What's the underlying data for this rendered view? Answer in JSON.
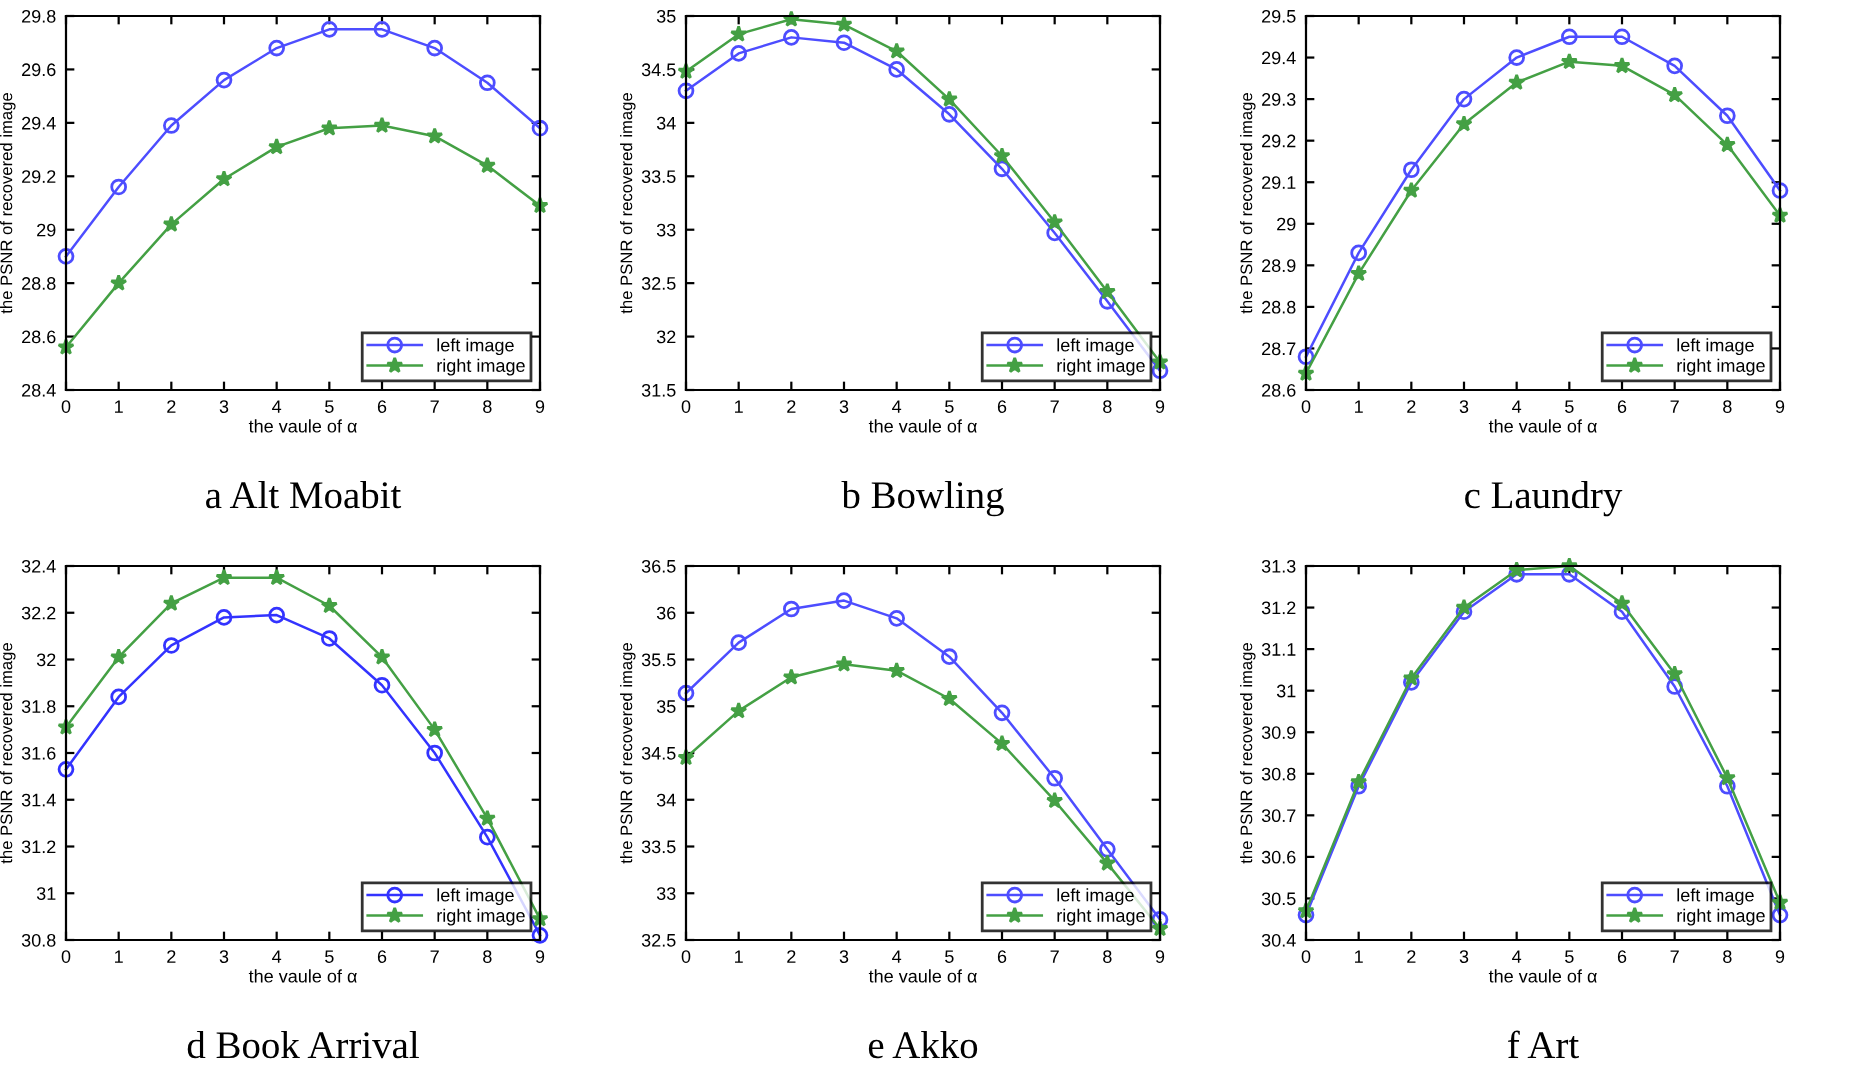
{
  "chart_data": [
    {
      "type": "line",
      "title": "a Alt Moabit",
      "xlabel": "the vaule of α",
      "ylabel": "the PSNR of recovered image",
      "x": [
        0,
        1,
        2,
        3,
        4,
        5,
        6,
        7,
        8,
        9
      ],
      "xlim": [
        0,
        9
      ],
      "xticks": [
        0,
        1,
        2,
        3,
        4,
        5,
        6,
        7,
        8,
        9
      ],
      "ylim": [
        28.4,
        29.8
      ],
      "yticks": [
        28.4,
        28.6,
        28.8,
        29,
        29.2,
        29.4,
        29.6,
        29.8
      ],
      "legend": "bottom right",
      "grid": false,
      "series": [
        {
          "name": "left image",
          "color": "#4d4dff",
          "marker": "circle",
          "values": [
            28.9,
            29.16,
            29.39,
            29.56,
            29.68,
            29.75,
            29.75,
            29.68,
            29.55,
            29.38
          ]
        },
        {
          "name": "right image",
          "color": "#44a044",
          "marker": "star",
          "values": [
            28.56,
            28.8,
            29.02,
            29.19,
            29.31,
            29.38,
            29.39,
            29.35,
            29.24,
            29.09
          ]
        }
      ]
    },
    {
      "type": "line",
      "title": "b Bowling",
      "xlabel": "the vaule of α",
      "ylabel": "the PSNR of recovered image",
      "x": [
        0,
        1,
        2,
        3,
        4,
        5,
        6,
        7,
        8,
        9
      ],
      "xlim": [
        0,
        9
      ],
      "xticks": [
        0,
        1,
        2,
        3,
        4,
        5,
        6,
        7,
        8,
        9
      ],
      "ylim": [
        31.5,
        35
      ],
      "yticks": [
        31.5,
        32,
        32.5,
        33,
        33.5,
        34,
        34.5,
        35
      ],
      "legend": "bottom right",
      "grid": false,
      "series": [
        {
          "name": "left image",
          "color": "#4d4dff",
          "marker": "circle",
          "values": [
            34.3,
            34.65,
            34.8,
            34.75,
            34.5,
            34.08,
            33.57,
            32.97,
            32.33,
            31.68
          ]
        },
        {
          "name": "right image",
          "color": "#44a044",
          "marker": "star",
          "values": [
            34.48,
            34.83,
            34.97,
            34.92,
            34.67,
            34.22,
            33.69,
            33.07,
            32.42,
            31.76
          ]
        }
      ]
    },
    {
      "type": "line",
      "title": "c Laundry",
      "xlabel": "the vaule of α",
      "ylabel": "the PSNR of recovered image",
      "x": [
        0,
        1,
        2,
        3,
        4,
        5,
        6,
        7,
        8,
        9
      ],
      "xlim": [
        0,
        9
      ],
      "xticks": [
        0,
        1,
        2,
        3,
        4,
        5,
        6,
        7,
        8,
        9
      ],
      "ylim": [
        28.6,
        29.5
      ],
      "yticks": [
        28.6,
        28.7,
        28.8,
        28.9,
        29,
        29.1,
        29.2,
        29.3,
        29.4,
        29.5
      ],
      "legend": "bottom right",
      "grid": false,
      "series": [
        {
          "name": "left image",
          "color": "#4d4dff",
          "marker": "circle",
          "values": [
            28.68,
            28.93,
            29.13,
            29.3,
            29.4,
            29.45,
            29.45,
            29.38,
            29.26,
            29.08
          ]
        },
        {
          "name": "right image",
          "color": "#44a044",
          "marker": "star",
          "values": [
            28.64,
            28.88,
            29.08,
            29.24,
            29.34,
            29.39,
            29.38,
            29.31,
            29.19,
            29.02
          ]
        }
      ]
    },
    {
      "type": "line",
      "title": "d Book Arrival",
      "xlabel": "the vaule of α",
      "ylabel": "the PSNR of recovered image",
      "x": [
        0,
        1,
        2,
        3,
        4,
        5,
        6,
        7,
        8,
        9
      ],
      "xlim": [
        0,
        9
      ],
      "xticks": [
        0,
        1,
        2,
        3,
        4,
        5,
        6,
        7,
        8,
        9
      ],
      "ylim": [
        30.8,
        32.4
      ],
      "yticks": [
        30.8,
        31,
        31.2,
        31.4,
        31.6,
        31.8,
        32,
        32.2,
        32.4
      ],
      "legend": "bottom right",
      "grid": false,
      "series": [
        {
          "name": "left image",
          "color": "#3333ff",
          "marker": "circle",
          "values": [
            31.53,
            31.84,
            32.06,
            32.18,
            32.19,
            32.09,
            31.89,
            31.6,
            31.24,
            30.82
          ]
        },
        {
          "name": "right image",
          "color": "#44a044",
          "marker": "star",
          "values": [
            31.71,
            32.01,
            32.24,
            32.35,
            32.35,
            32.23,
            32.01,
            31.7,
            31.32,
            30.89
          ]
        }
      ]
    },
    {
      "type": "line",
      "title": "e Akko",
      "xlabel": "the vaule of α",
      "ylabel": "the PSNR of recovered image",
      "x": [
        0,
        1,
        2,
        3,
        4,
        5,
        6,
        7,
        8,
        9
      ],
      "xlim": [
        0,
        9
      ],
      "xticks": [
        0,
        1,
        2,
        3,
        4,
        5,
        6,
        7,
        8,
        9
      ],
      "ylim": [
        32.5,
        36.5
      ],
      "yticks": [
        32.5,
        33,
        33.5,
        34,
        34.5,
        35,
        35.5,
        36,
        36.5
      ],
      "legend": "bottom right",
      "grid": false,
      "series": [
        {
          "name": "left image",
          "color": "#4d4dff",
          "marker": "circle",
          "values": [
            35.14,
            35.68,
            36.04,
            36.13,
            35.94,
            35.53,
            34.93,
            34.23,
            33.47,
            32.72
          ]
        },
        {
          "name": "right image",
          "color": "#44a044",
          "marker": "star",
          "values": [
            34.45,
            34.95,
            35.31,
            35.45,
            35.38,
            35.08,
            34.6,
            33.99,
            33.32,
            32.62
          ]
        }
      ]
    },
    {
      "type": "line",
      "title": "f Art",
      "xlabel": "the vaule of α",
      "ylabel": "the PSNR of recovered image",
      "x": [
        0,
        1,
        2,
        3,
        4,
        5,
        6,
        7,
        8,
        9
      ],
      "xlim": [
        0,
        9
      ],
      "xticks": [
        0,
        1,
        2,
        3,
        4,
        5,
        6,
        7,
        8,
        9
      ],
      "ylim": [
        30.4,
        31.3
      ],
      "yticks": [
        30.4,
        30.5,
        30.6,
        30.7,
        30.8,
        30.9,
        31,
        31.1,
        31.2,
        31.3
      ],
      "legend": "bottom right",
      "grid": false,
      "series": [
        {
          "name": "left image",
          "color": "#4d4dff",
          "marker": "circle",
          "values": [
            30.46,
            30.77,
            31.02,
            31.19,
            31.28,
            31.28,
            31.19,
            31.01,
            30.77,
            30.46
          ]
        },
        {
          "name": "right image",
          "color": "#44a044",
          "marker": "star",
          "values": [
            30.47,
            30.78,
            31.03,
            31.2,
            31.29,
            31.3,
            31.21,
            31.04,
            30.79,
            30.49
          ]
        }
      ]
    }
  ]
}
